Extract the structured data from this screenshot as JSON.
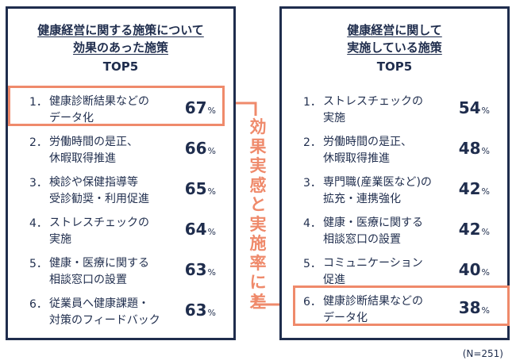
{
  "left_panel": {
    "title_line1": "健康経営に関する施策について",
    "title_line2": "効果のあった施策",
    "subtitle": "TOP5",
    "items": [
      {
        "num": "1．",
        "line1": "健康診断結果などの",
        "line2": "データ化",
        "value": "67",
        "unit": "%"
      },
      {
        "num": "2．",
        "line1": "労働時間の是正、",
        "line2": "休暇取得推進",
        "value": "66",
        "unit": "%"
      },
      {
        "num": "3．",
        "line1": "検診や保健指導等",
        "line2": "受診勧奨・利用促進",
        "value": "65",
        "unit": "%"
      },
      {
        "num": "4．",
        "line1": "ストレスチェックの",
        "line2": "実施",
        "value": "64",
        "unit": "%"
      },
      {
        "num": "5．",
        "line1": "健康・医療に関する",
        "line2": "相談窓口の設置",
        "value": "63",
        "unit": "%"
      },
      {
        "num": "6．",
        "line1": "従業員へ健康課題・",
        "line2": "対策のフィードバック",
        "value": "63",
        "unit": "%"
      }
    ]
  },
  "right_panel": {
    "title_line1": "健康経営に関して",
    "title_line2": "実施している施策",
    "subtitle": "TOP5",
    "items": [
      {
        "num": "1．",
        "line1": "ストレスチェックの",
        "line2": "実施",
        "value": "54",
        "unit": "%"
      },
      {
        "num": "2．",
        "line1": "労働時間の是正、",
        "line2": "休暇取得推進",
        "value": "48",
        "unit": "%"
      },
      {
        "num": "3．",
        "line1": "専門職(産業医など)の",
        "line2": "拡充・連携強化",
        "value": "42",
        "unit": "%"
      },
      {
        "num": "4．",
        "line1": "健康・医療に関する",
        "line2": "相談窓口の設置",
        "value": "42",
        "unit": "%"
      },
      {
        "num": "5．",
        "line1": "コミュニケーション",
        "line2": "促進",
        "value": "40",
        "unit": "%"
      },
      {
        "num": "6．",
        "line1": "健康診断結果などの",
        "line2": "データ化",
        "value": "38",
        "unit": "%"
      }
    ]
  },
  "connector_text": [
    "効",
    "果",
    "実",
    "感",
    "と",
    "実",
    "施",
    "率",
    "に",
    "差"
  ],
  "sample_note": "(N=251)",
  "colors": {
    "navy": "#1f2d4d",
    "accent": "#ef8a6b"
  }
}
